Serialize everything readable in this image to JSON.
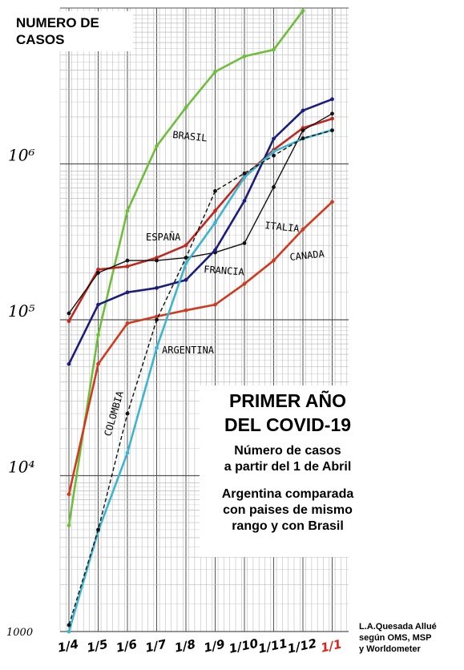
{
  "chart_data": {
    "type": "line",
    "title": "PRIMER AÑO DEL COVID-19",
    "ylabel": "NUMERO DE CASOS",
    "yscale": "log",
    "ylim": [
      1000,
      10000000
    ],
    "y_major_ticks": [
      {
        "value": 1000,
        "label": "1000"
      },
      {
        "value": 10000,
        "label": "10⁴"
      },
      {
        "value": 100000,
        "label": "10⁵"
      },
      {
        "value": 1000000,
        "label": "10⁶"
      }
    ],
    "categories": [
      "1/4",
      "1/5",
      "1/6",
      "1/7",
      "1/8",
      "1/9",
      "1/10",
      "1/11",
      "1/12",
      "1/1"
    ],
    "highlight_category": "1/1",
    "series": [
      {
        "name": "BRASIL",
        "color": "#6dbf3a",
        "values": [
          4800,
          80000,
          500000,
          1300000,
          2300000,
          3900000,
          4900000,
          5400000,
          9600000,
          null
        ]
      },
      {
        "name": "ESPAÑA",
        "color": "#c0281f",
        "values": [
          98000,
          210000,
          220000,
          250000,
          300000,
          500000,
          830000,
          1230000,
          1700000,
          1950000
        ]
      },
      {
        "name": "ITALIA",
        "color": "#111111",
        "values": [
          110000,
          200000,
          240000,
          240000,
          250000,
          270000,
          310000,
          710000,
          1640000,
          2100000
        ]
      },
      {
        "name": "FRANCIA",
        "color": "#1c1c7d",
        "values": [
          52000,
          125000,
          150000,
          160000,
          180000,
          280000,
          580000,
          1450000,
          2200000,
          2600000
        ]
      },
      {
        "name": "CANADA",
        "color": "#d23a20",
        "values": null
      },
      {
        "name": "ARGENTINA",
        "color": "#3bb5d0",
        "values": [
          1000,
          4400,
          14000,
          66000,
          230000,
          420000,
          820000,
          1200000,
          1450000,
          1650000
        ]
      },
      {
        "name": "COLOMBIA",
        "color": "#111111",
        "dashed": true,
        "values": [
          1100,
          4500,
          25000,
          100000,
          250000,
          670000,
          870000,
          1130000,
          1460000,
          1640000
        ]
      }
    ],
    "series_canada_values": [
      7600,
      52000,
      95000,
      105000,
      115000,
      125000,
      170000,
      240000,
      380000,
      570000
    ],
    "series_labels": [
      "BRASIL",
      "ESPAÑA",
      "ITALIA",
      "FRANCIA",
      "CANADA",
      "ARGENTINA",
      "COLOMBIA"
    ],
    "legend": "inline labels",
    "grid": true
  },
  "ylabel_box": {
    "text": "NUMERO DE\nCASOS"
  },
  "info": {
    "title": "PRIMER AÑO\nDEL COVID-19",
    "subtitle": "Número de casos\na partir del 1 de Abril",
    "note": "Argentina comparada\ncon paises de mismo\nrango y con Brasil"
  },
  "credit": "L.A.Quesada Allué\nsegún OMS, MSP\ny Worldometer",
  "colors": {
    "grid_major": "#555555",
    "grid_minor": "#bdbdbd",
    "highlight": "#e0201a"
  }
}
